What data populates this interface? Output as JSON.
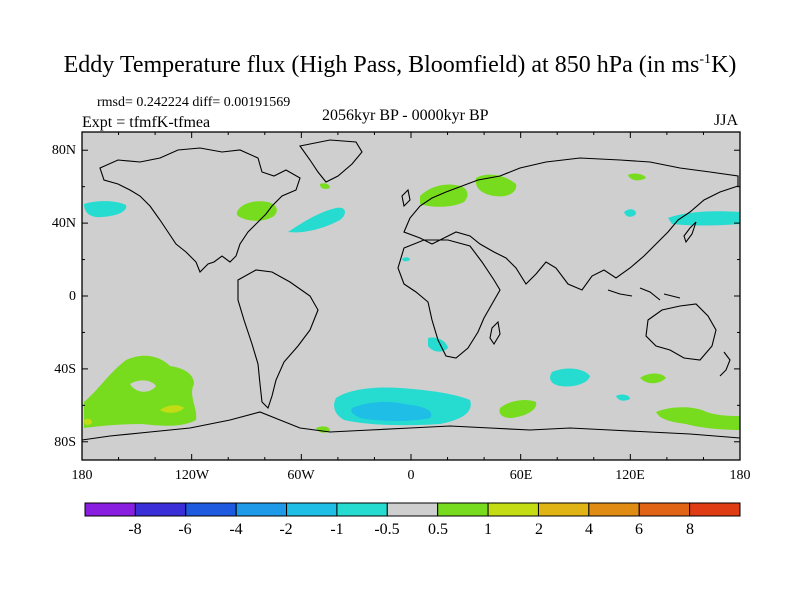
{
  "title": {
    "main": "Eddy Temperature flux (High Pass, Bloomfield) at 850 hPa (in ms",
    "sup": "-1",
    "suffix": "K)"
  },
  "stats": "rmsd= 0.242224 diff= 0.00191569",
  "experiment": "Expt = tfmfK-tfmea",
  "period": "2056kyr BP - 0000kyr BP",
  "season": "JJA",
  "lat_labels": [
    "80N",
    "40N",
    "0",
    "40S",
    "80S"
  ],
  "lon_labels": [
    "180",
    "120W",
    "60W",
    "0",
    "60E",
    "120E",
    "180"
  ],
  "colorbar": {
    "labels": [
      "-8",
      "-6",
      "-4",
      "-2",
      "-1",
      "-0.5",
      "0.5",
      "1",
      "2",
      "4",
      "6",
      "8"
    ],
    "colors": [
      "#8a1ee0",
      "#3a2ed8",
      "#1e5ae0",
      "#1e9ae8",
      "#1ebee6",
      "#26dcd0",
      "#cfcfcf",
      "#78dc1e",
      "#c4dc14",
      "#e0b414",
      "#e08c14",
      "#e06414",
      "#e03c14"
    ]
  },
  "colors": {
    "ocean_land": "#cfcfcf",
    "positive_weak": "#78dc1e",
    "positive_mid": "#c4dc14",
    "negative_weak": "#26dcd0",
    "negative_mid": "#1ebee6"
  },
  "chart_data": {
    "type": "map",
    "projection": "cylindrical-equidistant",
    "lon_range": [
      -180,
      180
    ],
    "lat_range": [
      -90,
      90
    ],
    "levels": [
      -8,
      -6,
      -4,
      -2,
      -1,
      -0.5,
      0.5,
      1,
      2,
      4,
      6,
      8
    ],
    "units": "ms-1K",
    "anomaly_regions": [
      {
        "name": "north-atlantic-negative",
        "sign": "negative",
        "approx_center": [
          -40,
          42
        ]
      },
      {
        "name": "north-america-east-positive",
        "sign": "positive",
        "approx_center": [
          -80,
          45
        ]
      },
      {
        "name": "europe-positive",
        "sign": "positive",
        "approx_center": [
          20,
          55
        ]
      },
      {
        "name": "northwest-pacific-negative",
        "sign": "negative",
        "approx_center": [
          160,
          40
        ]
      },
      {
        "name": "south-pacific-positive",
        "sign": "positive",
        "approx_center": [
          -140,
          -50
        ]
      },
      {
        "name": "southern-ocean-atlantic-negative",
        "sign": "negative",
        "approx_center": [
          5,
          -58
        ]
      },
      {
        "name": "south-indian-negative",
        "sign": "negative",
        "approx_center": [
          90,
          -42
        ]
      },
      {
        "name": "southern-ocean-indian-positive",
        "sign": "positive",
        "approx_center": [
          60,
          -60
        ]
      },
      {
        "name": "south-pacific-east-positive",
        "sign": "positive",
        "approx_center": [
          150,
          -62
        ]
      }
    ]
  }
}
